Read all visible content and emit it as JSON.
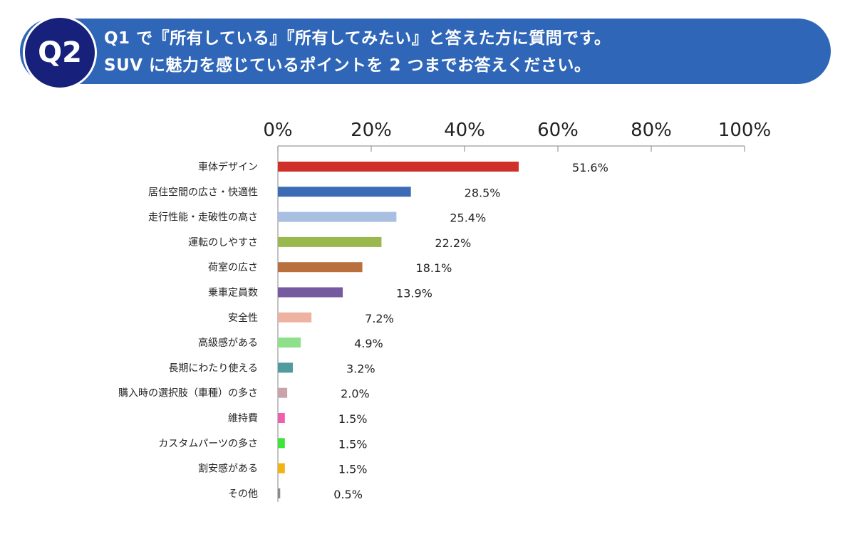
{
  "header": {
    "badge": "Q2",
    "line1": "Q1 で『所有している』『所有してみたい』と答えた方に質問です。",
    "line2": "SUV に魅力を感じているポイントを 2 つまでお答えください。"
  },
  "chart_data": {
    "type": "bar",
    "orientation": "horizontal",
    "xlim": [
      0,
      100
    ],
    "ticks": [
      0,
      20,
      40,
      60,
      80,
      100
    ],
    "tick_labels": [
      "0%",
      "20%",
      "40%",
      "60%",
      "80%",
      "100%"
    ],
    "axis_position": "top",
    "grid": false,
    "categories": [
      "車体デザイン",
      "居住空間の広さ・快適性",
      "走行性能・走破性の高さ",
      "運転のしやすさ",
      "荷室の広さ",
      "乗車定員数",
      "安全性",
      "高級感がある",
      "長期にわたり使える",
      "購入時の選択肢（車種）の多さ",
      "維持費",
      "カスタムパーツの多さ",
      "割安感がある",
      "その他"
    ],
    "values": [
      51.6,
      28.5,
      25.4,
      22.2,
      18.1,
      13.9,
      7.2,
      4.9,
      3.2,
      2.0,
      1.5,
      1.5,
      1.5,
      0.5
    ],
    "value_labels": [
      "51.6%",
      "28.5%",
      "25.4%",
      "22.2%",
      "18.1%",
      "13.9%",
      "7.2%",
      "4.9%",
      "3.2%",
      "2.0%",
      "1.5%",
      "1.5%",
      "1.5%",
      "0.5%"
    ],
    "colors": [
      "#d0302a",
      "#3c6bb5",
      "#a9bfe2",
      "#99b94e",
      "#b9703c",
      "#765aa0",
      "#eeb3a0",
      "#8fe08a",
      "#4f9b9d",
      "#c9a2aa",
      "#ee5fae",
      "#3fe43a",
      "#f3b312",
      "#8a8a8a"
    ]
  }
}
